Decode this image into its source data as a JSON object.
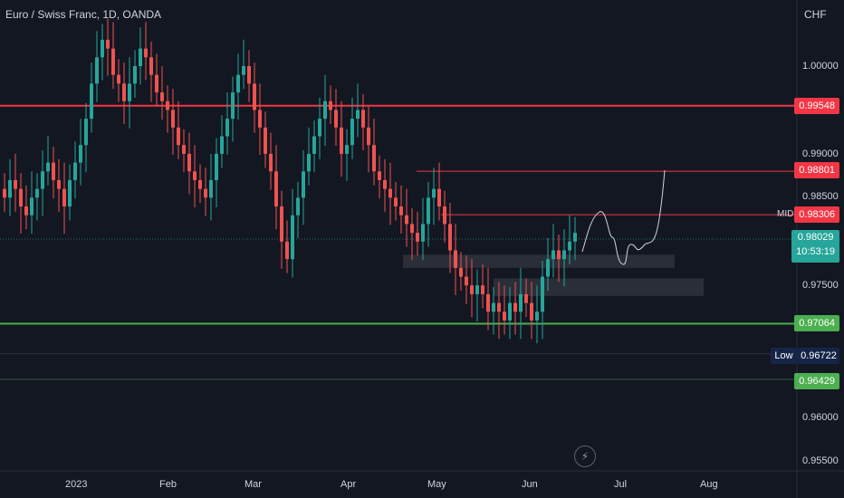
{
  "header": {
    "symbol_title": "Euro / Swiss Franc, 1D, OANDA",
    "currency": "CHF"
  },
  "price_axis": {
    "ticks": [
      "1.00000",
      "0.99000",
      "0.98500",
      "0.97500",
      "0.96000",
      "0.95500"
    ]
  },
  "price_tags": {
    "red_top": "0.99548",
    "red_88": "0.98801",
    "mid": "0.98306",
    "mid_label": "MID",
    "current": "0.98029",
    "countdown": "10:53:19",
    "green": "0.97064",
    "low_label": "Low",
    "low_value": "0.96722",
    "green_low": "0.96429"
  },
  "time_axis": {
    "labels": [
      "2023",
      "Feb",
      "Mar",
      "Apr",
      "May",
      "Jun",
      "Jul",
      "Aug"
    ]
  },
  "colors": {
    "bg": "#131722",
    "up": "#26a69a",
    "down": "#ef5350",
    "red_line": "#f23645",
    "green_line": "#4caf50",
    "text": "#d1d4dc"
  },
  "icons": {
    "replay": "lightning-icon"
  },
  "chart_data": {
    "type": "candlestick",
    "symbol": "Euro / Swiss Franc",
    "interval": "1D",
    "source": "OANDA",
    "currency": "CHF",
    "current_price": 0.98029,
    "low": 0.96722,
    "horizontal_levels": [
      {
        "value": 0.99548,
        "color": "red"
      },
      {
        "value": 0.98801,
        "color": "red"
      },
      {
        "value": 0.98306,
        "label": "MID",
        "color": "red"
      },
      {
        "value": 0.97064,
        "color": "green"
      },
      {
        "value": 0.96429,
        "color": "green"
      }
    ],
    "zones": [
      {
        "from": 0.977,
        "to": 0.9785
      },
      {
        "from": 0.9738,
        "to": 0.9758
      }
    ],
    "closes_approx": [
      0.985,
      0.987,
      0.986,
      0.984,
      0.983,
      0.985,
      0.986,
      0.988,
      0.989,
      0.987,
      0.986,
      0.984,
      0.987,
      0.989,
      0.991,
      0.994,
      0.998,
      1.001,
      1.003,
      1.002,
      0.999,
      0.998,
      0.996,
      0.998,
      1.0,
      1.002,
      1.001,
      0.999,
      0.997,
      0.996,
      0.995,
      0.993,
      0.991,
      0.99,
      0.988,
      0.987,
      0.986,
      0.985,
      0.987,
      0.99,
      0.992,
      0.994,
      0.997,
      0.999,
      1.0,
      0.998,
      0.995,
      0.993,
      0.99,
      0.988,
      0.984,
      0.98,
      0.978,
      0.983,
      0.985,
      0.988,
      0.99,
      0.992,
      0.994,
      0.996,
      0.995,
      0.993,
      0.99,
      0.991,
      0.994,
      0.995,
      0.993,
      0.991,
      0.988,
      0.987,
      0.986,
      0.985,
      0.984,
      0.983,
      0.982,
      0.981,
      0.98,
      0.982,
      0.985,
      0.986,
      0.984,
      0.982,
      0.979,
      0.977,
      0.976,
      0.975,
      0.974,
      0.975,
      0.974,
      0.972,
      0.973,
      0.972,
      0.971,
      0.973,
      0.972,
      0.974,
      0.973,
      0.971,
      0.972,
      0.976,
      0.978,
      0.979,
      0.978,
      0.979,
      0.98,
      0.981
    ]
  }
}
